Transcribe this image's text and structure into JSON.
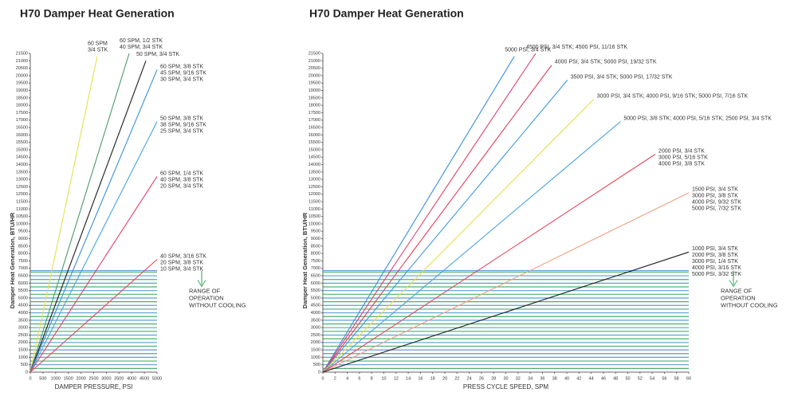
{
  "chart_data": [
    {
      "type": "line",
      "title": "H70 Damper Heat Generation",
      "xlabel": "DAMPER PRESSURE, PSI",
      "ylabel": "Damper Heat Generation, BTU/HR",
      "xlim": [
        0,
        5000
      ],
      "ylim": [
        0,
        21500
      ],
      "xticks": [
        0,
        500,
        1000,
        1500,
        2000,
        2500,
        3000,
        3500,
        4000,
        4500,
        5000
      ],
      "yticks": [
        0,
        500,
        1000,
        1500,
        2000,
        2500,
        3000,
        3500,
        4000,
        4500,
        5000,
        5500,
        6000,
        6500,
        7000,
        7500,
        8000,
        8500,
        9000,
        9500,
        10000,
        10500,
        11000,
        11500,
        12000,
        12500,
        13000,
        13500,
        14000,
        14500,
        15000,
        15500,
        16000,
        16500,
        17000,
        17500,
        18000,
        18500,
        19000,
        19500,
        20000,
        20500,
        21000,
        21500
      ],
      "band": {
        "ylim": [
          0,
          6850
        ],
        "colors": [
          "#4caf6e",
          "#5b9fd6"
        ],
        "label": [
          "RANGE OF",
          "OPERATION",
          "WITHOUT COOLING"
        ]
      },
      "series": [
        {
          "name": [
            "60 SPM",
            "3/4 STK"
          ],
          "color": "#e8e04a",
          "x": [
            0,
            2640
          ],
          "values": [
            0,
            21300
          ]
        },
        {
          "name": [
            "60 SPM, 1/2 STK",
            "40 SPM, 3/4 STK"
          ],
          "color": "#4c9a6a",
          "x": [
            0,
            3900
          ],
          "values": [
            0,
            21500
          ]
        },
        {
          "name": [
            "50 SPM, 3/4 STK"
          ],
          "color": "#1a1a1a",
          "x": [
            0,
            4560
          ],
          "values": [
            0,
            21000
          ]
        },
        {
          "name": [
            "60 SPM, 3/8 STK",
            "45 SPM, 9/16 STK",
            "30 SPM, 3/4 STK"
          ],
          "color": "#3a8fd8",
          "x": [
            0,
            5000
          ],
          "values": [
            0,
            20400
          ]
        },
        {
          "name": [
            "50 SPM, 3/8 STK",
            "38 SPM, 9/16 STK",
            "25 SPM, 3/4 STK"
          ],
          "color": "#4aa3e0",
          "x": [
            0,
            5000
          ],
          "values": [
            0,
            16900
          ]
        },
        {
          "name": [
            "60 SPM, 1/4 STK",
            "40 SPM, 3/8 STK",
            "20 SPM, 3/4 STK"
          ],
          "color": "#e0406a",
          "x": [
            0,
            5000
          ],
          "values": [
            0,
            13200
          ]
        },
        {
          "name": [
            "40 SPM, 3/16 STK",
            "20 SPM, 3/8 STK",
            "10 SPM, 3/4 STK"
          ],
          "color": "#e04a5a",
          "x": [
            0,
            5000
          ],
          "values": [
            0,
            7600
          ]
        }
      ]
    },
    {
      "type": "line",
      "title": "H70 Damper Heat Generation",
      "xlabel": "PRESS CYCLE SPEED, SPM",
      "ylabel": "Damper Heat Generation, BTU/HR",
      "xlim": [
        0,
        60
      ],
      "ylim": [
        0,
        21500
      ],
      "xticks": [
        0,
        2,
        4,
        6,
        8,
        10,
        12,
        14,
        16,
        18,
        20,
        22,
        24,
        26,
        28,
        30,
        32,
        34,
        36,
        38,
        40,
        42,
        44,
        46,
        48,
        50,
        52,
        54,
        56,
        58,
        60
      ],
      "yticks": [
        0,
        500,
        1000,
        1500,
        2000,
        2500,
        3000,
        3500,
        4000,
        4500,
        5000,
        5500,
        6000,
        6500,
        7000,
        7500,
        8000,
        8500,
        9000,
        9500,
        10000,
        10500,
        11000,
        11500,
        12000,
        12500,
        13000,
        13500,
        14000,
        14500,
        15000,
        15500,
        16000,
        16500,
        17000,
        17500,
        18000,
        18500,
        19000,
        19500,
        20000,
        20500,
        21000,
        21500
      ],
      "band": {
        "ylim": [
          0,
          6850
        ],
        "colors": [
          "#4caf6e",
          "#5b9fd6"
        ],
        "label": [
          "RANGE OF",
          "OPERATION",
          "WITHOUT COOLING"
        ]
      },
      "series": [
        {
          "name": [
            "5000 PSI, 3/4 STK"
          ],
          "color": "#3a8fd8",
          "x": [
            0,
            31.4
          ],
          "values": [
            0,
            21300
          ]
        },
        {
          "name": [
            "4500 PSI, 3/4 STK; 4500 PSI, 11/16 STK"
          ],
          "color": "#e0406a",
          "x": [
            0,
            34.9
          ],
          "values": [
            0,
            21500
          ]
        },
        {
          "name": [
            "4000 PSI, 3/4 STK; 5000 PSI, 19/32 STK"
          ],
          "color": "#e0405a",
          "x": [
            0,
            37.5
          ],
          "values": [
            0,
            20700
          ]
        },
        {
          "name": [
            "3500 PSI, 3/4 STK; 5000 PSI, 17/32 STK"
          ],
          "color": "#3a9ad8",
          "x": [
            0,
            40.1
          ],
          "values": [
            0,
            19700
          ]
        },
        {
          "name": [
            "3000 PSI, 3/4 STK; 4000 PSI, 9/16 STK; 5000 PSI, 7/16 STK"
          ],
          "color": "#e8e04a",
          "x": [
            0,
            44.4
          ],
          "values": [
            0,
            18400
          ]
        },
        {
          "name": [
            "5000 PSI, 3/8 STK; 4000 PSI, 5/16 STK; 2500 PSI, 3/4 STK"
          ],
          "color": "#4aa3e0",
          "x": [
            0,
            48.8
          ],
          "values": [
            0,
            16900
          ]
        },
        {
          "name": [
            "2000 PSI, 3/4 STK",
            "3000 PSI, 5/16 STK",
            "4000 PSI, 3/8 STK"
          ],
          "color": "#e04a5a",
          "x": [
            0,
            54.5
          ],
          "values": [
            0,
            14700
          ]
        },
        {
          "name": [
            "1500 PSI, 3/4 STK",
            "3000 PSI, 3/8 STK",
            "4000 PSI, 9/32 STK",
            "5000 PSI, 7/32 STK"
          ],
          "color": "#f0a080",
          "x": [
            0,
            60
          ],
          "values": [
            0,
            12100
          ]
        },
        {
          "name": [
            "1000 PSI, 3/4 STK",
            "2000 PSI, 3/8 STK",
            "3000 PSI, 1/4 STK",
            "4000 PSI, 3/16 STK",
            "5000 PSI, 3/32 STK"
          ],
          "color": "#1a1a1a",
          "x": [
            0,
            60
          ],
          "values": [
            0,
            8100
          ]
        }
      ]
    }
  ]
}
